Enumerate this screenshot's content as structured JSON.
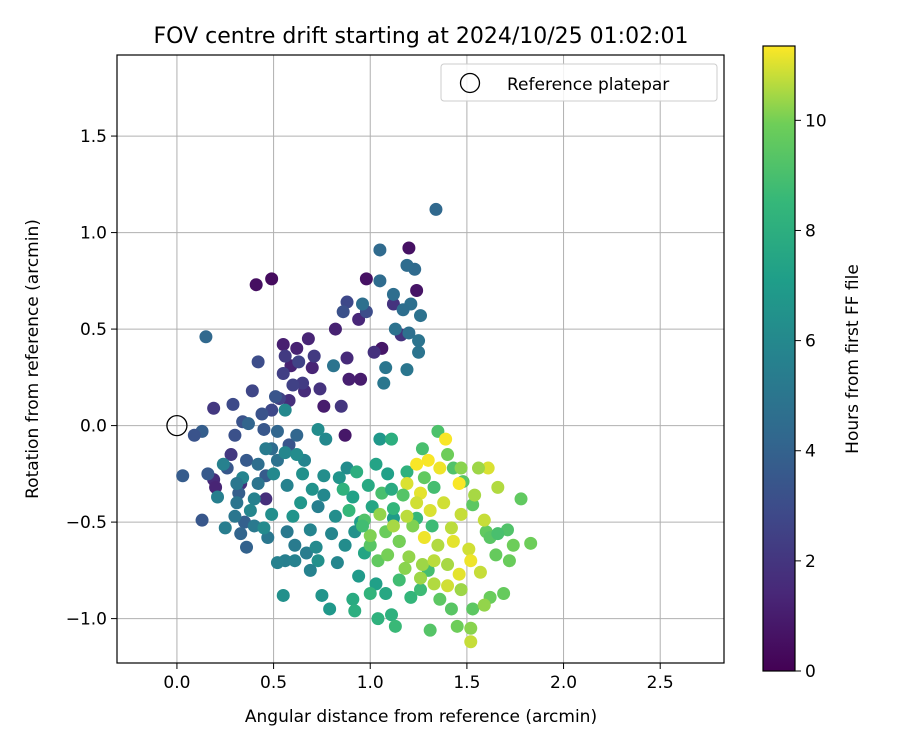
{
  "chart_data": {
    "type": "scatter",
    "title": "FOV centre drift starting at 2024/10/25 01:02:01",
    "xlabel": "Angular distance from reference (arcmin)",
    "ylabel": "Rotation from reference (arcmin)",
    "xlim": [
      -0.31,
      2.83
    ],
    "ylim": [
      -1.23,
      1.92
    ],
    "xticks": [
      0.0,
      0.5,
      1.0,
      1.5,
      2.0,
      2.5
    ],
    "yticks": [
      -1.0,
      -0.5,
      0.0,
      0.5,
      1.0,
      1.5
    ],
    "xtick_labels": [
      "0.0",
      "0.5",
      "1.0",
      "1.5",
      "2.0",
      "2.5"
    ],
    "ytick_labels": [
      "−1.0",
      "−0.5",
      "0.0",
      "0.5",
      "1.0",
      "1.5"
    ],
    "grid": true,
    "legend": {
      "position": "top-right",
      "entries": [
        "Reference platepar"
      ]
    },
    "reference_point": {
      "x": 0.0,
      "y": 0.0,
      "label": "Reference platepar"
    },
    "colorbar": {
      "label": "Hours from first FF file",
      "range": [
        0,
        11.35
      ],
      "ticks": [
        0,
        2,
        4,
        6,
        8,
        10
      ],
      "tick_labels": [
        "0",
        "2",
        "4",
        "6",
        "8",
        "10"
      ],
      "colormap": "viridis"
    },
    "points": [
      [
        0.41,
        0.73,
        0.5
      ],
      [
        0.49,
        0.76,
        0.4
      ],
      [
        0.98,
        0.76,
        0.6
      ],
      [
        1.2,
        0.92,
        0.6
      ],
      [
        1.24,
        0.7,
        0.7
      ],
      [
        1.06,
        0.4,
        0.8
      ],
      [
        0.95,
        0.24,
        1.0
      ],
      [
        0.89,
        0.24,
        1.1
      ],
      [
        0.76,
        0.1,
        1.0
      ],
      [
        0.87,
        -0.05,
        0.8
      ],
      [
        0.55,
        0.42,
        1.1
      ],
      [
        0.59,
        0.31,
        1.2
      ],
      [
        0.7,
        0.3,
        1.3
      ],
      [
        0.68,
        0.45,
        1.3
      ],
      [
        0.82,
        0.5,
        1.2
      ],
      [
        0.94,
        0.55,
        1.4
      ],
      [
        0.88,
        0.35,
        1.5
      ],
      [
        0.66,
        0.18,
        1.6
      ],
      [
        0.58,
        0.13,
        1.7
      ],
      [
        0.62,
        0.4,
        1.2
      ],
      [
        1.02,
        0.38,
        1.8
      ],
      [
        1.12,
        0.63,
        1.9
      ],
      [
        1.16,
        0.47,
        1.9
      ],
      [
        0.85,
        0.1,
        2.0
      ],
      [
        0.74,
        0.19,
        1.9
      ],
      [
        0.19,
        0.09,
        2.1
      ],
      [
        0.19,
        -0.28,
        1.5
      ],
      [
        0.2,
        -0.32,
        1.3
      ],
      [
        0.33,
        -0.3,
        1.8
      ],
      [
        0.46,
        -0.38,
        1.7
      ],
      [
        0.28,
        -0.15,
        2.1
      ],
      [
        0.56,
        0.36,
        2.2
      ],
      [
        0.65,
        0.22,
        2.3
      ],
      [
        0.71,
        0.36,
        2.2
      ],
      [
        0.55,
        0.27,
        2.4
      ],
      [
        0.6,
        0.21,
        2.5
      ],
      [
        0.53,
        0.14,
        2.6
      ],
      [
        0.63,
        0.33,
        2.6
      ],
      [
        0.49,
        0.08,
        2.8
      ],
      [
        0.39,
        0.18,
        2.7
      ],
      [
        0.29,
        0.11,
        2.9
      ],
      [
        0.42,
        0.33,
        3.0
      ],
      [
        0.88,
        0.64,
        2.8
      ],
      [
        0.98,
        0.59,
        3.0
      ],
      [
        0.86,
        0.59,
        3.2
      ],
      [
        0.3,
        -0.05,
        3.2
      ],
      [
        0.34,
        0.02,
        3.3
      ],
      [
        0.44,
        0.06,
        3.3
      ],
      [
        0.51,
        0.15,
        3.4
      ],
      [
        0.45,
        -0.02,
        3.5
      ],
      [
        0.58,
        -0.1,
        3.4
      ],
      [
        0.36,
        -0.18,
        3.6
      ],
      [
        0.26,
        -0.22,
        3.5
      ],
      [
        0.46,
        -0.26,
        3.7
      ],
      [
        0.32,
        -0.35,
        3.8
      ],
      [
        0.16,
        -0.25,
        3.6
      ],
      [
        0.13,
        -0.03,
        3.8
      ],
      [
        0.09,
        -0.05,
        3.3
      ],
      [
        0.35,
        -0.5,
        3.9
      ],
      [
        0.13,
        -0.49,
        3.5
      ],
      [
        0.03,
        -0.26,
        3.7
      ],
      [
        0.36,
        -0.63,
        4.0
      ],
      [
        0.33,
        -0.56,
        4.1
      ],
      [
        0.15,
        0.46,
        4.3
      ],
      [
        0.37,
        0.01,
        4.1
      ],
      [
        0.52,
        -0.03,
        4.2
      ],
      [
        0.62,
        -0.05,
        4.2
      ],
      [
        1.34,
        1.12,
        4.3
      ],
      [
        1.05,
        0.91,
        4.4
      ],
      [
        1.23,
        0.81,
        4.4
      ],
      [
        1.19,
        0.83,
        4.5
      ],
      [
        1.05,
        0.75,
        4.5
      ],
      [
        1.12,
        0.68,
        4.6
      ],
      [
        1.21,
        0.63,
        4.7
      ],
      [
        1.17,
        0.6,
        4.6
      ],
      [
        1.26,
        0.57,
        4.8
      ],
      [
        0.96,
        0.63,
        4.7
      ],
      [
        1.13,
        0.5,
        4.8
      ],
      [
        1.2,
        0.48,
        4.7
      ],
      [
        1.25,
        0.44,
        4.9
      ],
      [
        1.25,
        0.38,
        4.9
      ],
      [
        1.19,
        0.29,
        5.0
      ],
      [
        1.08,
        0.3,
        5.0
      ],
      [
        1.07,
        0.22,
        5.1
      ],
      [
        0.81,
        0.31,
        4.9
      ],
      [
        0.49,
        -0.12,
        4.5
      ],
      [
        0.42,
        -0.2,
        4.6
      ],
      [
        0.52,
        -0.18,
        4.8
      ],
      [
        0.42,
        -0.3,
        4.9
      ],
      [
        0.31,
        -0.4,
        4.9
      ],
      [
        0.3,
        -0.47,
        5.0
      ],
      [
        0.47,
        -0.58,
        5.1
      ],
      [
        0.57,
        -0.55,
        5.2
      ],
      [
        0.4,
        -0.52,
        5.2
      ],
      [
        0.61,
        -0.62,
        5.3
      ],
      [
        0.67,
        -0.66,
        5.4
      ],
      [
        0.56,
        -0.7,
        5.5
      ],
      [
        0.61,
        -0.7,
        5.6
      ],
      [
        0.4,
        -0.38,
        5.6
      ],
      [
        0.57,
        -0.31,
        5.7
      ],
      [
        0.73,
        -0.42,
        5.5
      ],
      [
        0.69,
        -0.54,
        5.8
      ],
      [
        0.8,
        -0.56,
        5.9
      ],
      [
        0.76,
        -0.36,
        6.0
      ],
      [
        0.66,
        -0.18,
        5.8
      ],
      [
        0.56,
        -0.14,
        5.9
      ],
      [
        0.77,
        -0.07,
        6.0
      ],
      [
        0.88,
        -0.22,
        6.2
      ],
      [
        0.82,
        -0.47,
        6.3
      ],
      [
        0.87,
        -0.62,
        6.2
      ],
      [
        0.72,
        -0.63,
        6.1
      ],
      [
        0.73,
        -0.7,
        6.4
      ],
      [
        0.92,
        -0.55,
        6.5
      ],
      [
        0.55,
        -0.88,
        6.4
      ],
      [
        0.75,
        -0.88,
        6.6
      ],
      [
        0.79,
        -0.95,
        6.8
      ],
      [
        0.73,
        -0.02,
        6.2
      ],
      [
        0.84,
        -0.27,
        6.6
      ],
      [
        1.05,
        -0.07,
        6.8
      ],
      [
        0.56,
        0.08,
        6.0
      ],
      [
        0.94,
        -0.78,
        6.9
      ],
      [
        1.03,
        -0.82,
        7.2
      ],
      [
        1.12,
        -0.48,
        7.0
      ],
      [
        1.15,
        -0.6,
        7.2
      ],
      [
        0.95,
        -0.5,
        7.1
      ],
      [
        0.91,
        -0.37,
        7.3
      ],
      [
        1.09,
        -0.25,
        7.2
      ],
      [
        1.01,
        -0.42,
        7.5
      ],
      [
        0.97,
        -0.66,
        7.5
      ],
      [
        1.08,
        -0.87,
        7.6
      ],
      [
        0.91,
        -0.9,
        7.8
      ],
      [
        0.92,
        -0.96,
        8.0
      ],
      [
        1.04,
        -1.0,
        8.2
      ],
      [
        1.11,
        -0.98,
        8.1
      ],
      [
        1.0,
        -0.87,
        8.3
      ],
      [
        1.21,
        -0.89,
        8.4
      ],
      [
        1.13,
        -1.04,
        8.6
      ],
      [
        1.26,
        -0.85,
        8.7
      ],
      [
        1.15,
        -0.8,
        8.8
      ],
      [
        1.3,
        -0.75,
        8.9
      ],
      [
        1.11,
        -0.07,
        8.0
      ],
      [
        1.19,
        -0.24,
        8.2
      ],
      [
        1.12,
        -0.43,
        8.4
      ],
      [
        1.24,
        -0.48,
        8.5
      ],
      [
        1.32,
        -0.52,
        8.7
      ],
      [
        1.33,
        -0.32,
        8.9
      ],
      [
        1.27,
        -0.12,
        9.0
      ],
      [
        1.35,
        -0.03,
        9.1
      ],
      [
        1.43,
        -0.22,
        9.2
      ],
      [
        1.48,
        -0.29,
        9.4
      ],
      [
        1.53,
        -0.41,
        9.5
      ],
      [
        1.6,
        -0.55,
        9.6
      ],
      [
        1.65,
        -0.67,
        9.7
      ],
      [
        1.72,
        -0.7,
        9.8
      ],
      [
        1.74,
        -0.62,
        9.9
      ],
      [
        1.78,
        -0.38,
        9.6
      ],
      [
        1.83,
        -0.61,
        9.9
      ],
      [
        1.69,
        -0.87,
        9.7
      ],
      [
        1.62,
        -0.89,
        9.8
      ],
      [
        1.53,
        -0.95,
        9.5
      ],
      [
        1.42,
        -0.95,
        9.4
      ],
      [
        1.31,
        -1.06,
        9.3
      ],
      [
        1.36,
        -0.9,
        9.5
      ],
      [
        1.45,
        -1.04,
        9.9
      ],
      [
        1.52,
        -1.05,
        10.2
      ],
      [
        1.59,
        -0.93,
        10.3
      ],
      [
        1.47,
        -0.85,
        10.4
      ],
      [
        1.4,
        -0.72,
        10.5
      ],
      [
        1.35,
        -0.62,
        10.6
      ],
      [
        1.42,
        -0.53,
        10.7
      ],
      [
        1.47,
        -0.46,
        10.8
      ],
      [
        1.38,
        -0.4,
        10.9
      ],
      [
        1.31,
        -0.44,
        11.0
      ],
      [
        1.26,
        -0.35,
        11.1
      ],
      [
        1.28,
        -0.58,
        11.2
      ],
      [
        1.36,
        -0.22,
        11.2
      ],
      [
        1.24,
        -0.2,
        11.3
      ],
      [
        1.19,
        -0.3,
        11.0
      ],
      [
        1.43,
        -0.6,
        11.1
      ],
      [
        1.51,
        -0.64,
        10.9
      ],
      [
        1.57,
        -0.76,
        10.8
      ],
      [
        1.33,
        -0.82,
        10.6
      ],
      [
        1.27,
        -0.72,
        10.4
      ],
      [
        1.2,
        -0.68,
        10.3
      ],
      [
        1.22,
        -0.52,
        10.1
      ],
      [
        1.15,
        -0.6,
        10.0
      ],
      [
        1.08,
        -0.55,
        9.8
      ],
      [
        1.04,
        -0.7,
        9.6
      ],
      [
        1.0,
        -0.62,
        9.4
      ],
      [
        0.97,
        -0.49,
        9.2
      ],
      [
        1.06,
        -0.35,
        9.0
      ],
      [
        1.17,
        -0.36,
        9.3
      ],
      [
        1.28,
        -0.27,
        9.6
      ],
      [
        1.4,
        -0.15,
        9.9
      ],
      [
        1.47,
        -0.22,
        10.2
      ],
      [
        1.54,
        -0.36,
        10.5
      ],
      [
        1.59,
        -0.49,
        10.8
      ],
      [
        1.61,
        -0.22,
        11.0
      ],
      [
        1.66,
        -0.32,
        10.6
      ],
      [
        1.56,
        -0.22,
        10.4
      ],
      [
        1.46,
        -0.3,
        11.3
      ],
      [
        1.39,
        -0.07,
        11.3
      ],
      [
        1.3,
        -0.18,
        11.3
      ],
      [
        1.24,
        -0.4,
        10.9
      ],
      [
        1.19,
        -0.47,
        10.7
      ],
      [
        1.12,
        -0.52,
        10.5
      ],
      [
        1.05,
        -0.46,
        10.3
      ],
      [
        1.0,
        -0.57,
        10.1
      ],
      [
        1.09,
        -0.67,
        10.0
      ],
      [
        1.18,
        -0.74,
        10.2
      ],
      [
        1.26,
        -0.79,
        10.4
      ],
      [
        1.33,
        -0.7,
        10.7
      ],
      [
        1.4,
        -0.83,
        10.9
      ],
      [
        1.46,
        -0.77,
        11.1
      ],
      [
        1.52,
        -0.7,
        11.2
      ],
      [
        1.52,
        -1.12,
        10.8
      ],
      [
        1.62,
        -0.58,
        9.4
      ],
      [
        1.71,
        -0.54,
        9.2
      ],
      [
        1.66,
        -0.56,
        9.0
      ],
      [
        0.96,
        -0.52,
        8.8
      ],
      [
        0.89,
        -0.44,
        8.5
      ],
      [
        0.86,
        -0.33,
        8.2
      ],
      [
        0.93,
        -0.24,
        8.0
      ],
      [
        0.99,
        -0.31,
        7.7
      ],
      [
        1.03,
        -0.2,
        7.4
      ],
      [
        1.11,
        -0.33,
        7.8
      ],
      [
        0.6,
        -0.47,
        6.6
      ],
      [
        0.64,
        -0.4,
        6.7
      ],
      [
        0.7,
        -0.33,
        6.5
      ],
      [
        0.76,
        -0.26,
        6.3
      ],
      [
        0.49,
        -0.46,
        6.3
      ],
      [
        0.45,
        -0.53,
        6.1
      ],
      [
        0.38,
        -0.44,
        5.9
      ],
      [
        0.34,
        -0.27,
        5.8
      ],
      [
        0.24,
        -0.2,
        5.6
      ],
      [
        0.21,
        -0.37,
        5.5
      ],
      [
        0.25,
        -0.53,
        5.4
      ],
      [
        0.52,
        -0.71,
        5.6
      ],
      [
        0.69,
        -0.75,
        5.7
      ],
      [
        0.83,
        -0.71,
        5.9
      ],
      [
        0.65,
        -0.25,
        6.4
      ],
      [
        0.62,
        -0.15,
        6.2
      ],
      [
        0.5,
        -0.25,
        6.0
      ],
      [
        0.46,
        -0.12,
        5.3
      ],
      [
        0.31,
        -0.3,
        5.1
      ]
    ]
  }
}
